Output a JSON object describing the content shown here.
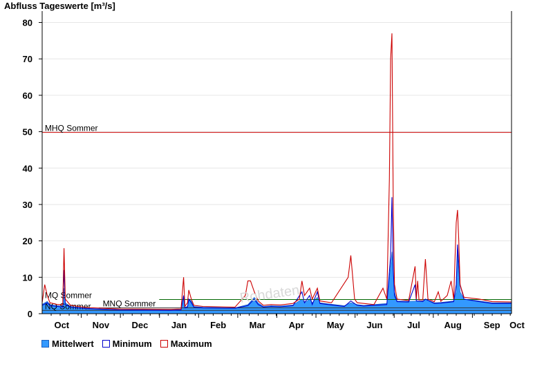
{
  "colors": {
    "mean_fill": "#3399ff",
    "minimum_line": "#0000cc",
    "maximum_line": "#cc0000",
    "mhq_line": "#cc0000",
    "mq_line": "#006600",
    "nq_line": "#333333",
    "grid": "#e6e6e6",
    "axis": "#000000"
  },
  "watermark": "Rohdaten",
  "chart_data": {
    "type": "area",
    "title": "Abfluss Tageswerte [m³/s]",
    "xlabel": "",
    "ylabel": "",
    "ylim": [
      0,
      82
    ],
    "y_ticks": [
      0,
      10,
      20,
      30,
      40,
      50,
      60,
      70,
      80
    ],
    "x_domain_days": [
      0,
      365
    ],
    "month_labels": [
      "Oct",
      "Nov",
      "Dec",
      "Jan",
      "Feb",
      "Mar",
      "Apr",
      "May",
      "Jun",
      "Jul",
      "Aug",
      "Sep",
      "Oct"
    ],
    "grid": "horizontal",
    "legend_placement": "bottom-left",
    "series": [
      {
        "name": "Mittelwert",
        "style": "area",
        "points": [
          [
            0,
            2.6
          ],
          [
            4,
            3.4
          ],
          [
            6,
            2.5
          ],
          [
            12,
            2.2
          ],
          [
            16,
            2.1
          ],
          [
            17,
            7
          ],
          [
            18,
            3
          ],
          [
            22,
            2
          ],
          [
            34,
            1.5
          ],
          [
            60,
            1.1
          ],
          [
            100,
            1.0
          ],
          [
            108,
            1.1
          ],
          [
            110,
            4.5
          ],
          [
            111,
            1.8
          ],
          [
            113,
            2
          ],
          [
            114,
            4
          ],
          [
            116,
            3.5
          ],
          [
            118,
            2.0
          ],
          [
            125,
            1.8
          ],
          [
            150,
            1.6
          ],
          [
            160,
            2.5
          ],
          [
            165,
            4.5
          ],
          [
            168,
            3
          ],
          [
            172,
            2
          ],
          [
            178,
            2.2
          ],
          [
            185,
            2.1
          ],
          [
            195,
            2.4
          ],
          [
            202,
            4
          ],
          [
            204,
            3
          ],
          [
            208,
            4
          ],
          [
            210,
            3
          ],
          [
            214,
            4.5
          ],
          [
            216,
            3
          ],
          [
            225,
            2.6
          ],
          [
            235,
            2.2
          ],
          [
            240,
            3
          ],
          [
            245,
            2.5
          ],
          [
            250,
            2.3
          ],
          [
            268,
            2.8
          ],
          [
            272,
            17
          ],
          [
            274,
            6
          ],
          [
            276,
            3.5
          ],
          [
            285,
            3.4
          ],
          [
            296,
            3.5
          ],
          [
            298,
            4
          ],
          [
            305,
            3
          ],
          [
            310,
            3.1
          ],
          [
            320,
            3.5
          ],
          [
            322,
            6
          ],
          [
            323,
            17
          ],
          [
            325,
            6
          ],
          [
            328,
            4
          ],
          [
            340,
            3.5
          ],
          [
            350,
            3
          ],
          [
            365,
            3
          ]
        ]
      },
      {
        "name": "Minimum",
        "style": "line",
        "points": [
          [
            0,
            2.3
          ],
          [
            4,
            3
          ],
          [
            6,
            2.2
          ],
          [
            12,
            2.0
          ],
          [
            16,
            1.8
          ],
          [
            17,
            12
          ],
          [
            18,
            2.5
          ],
          [
            22,
            1.8
          ],
          [
            34,
            1.4
          ],
          [
            60,
            1.0
          ],
          [
            100,
            0.9
          ],
          [
            108,
            1.0
          ],
          [
            110,
            5
          ],
          [
            111,
            1.6
          ],
          [
            113,
            1.8
          ],
          [
            114,
            4
          ],
          [
            116,
            3
          ],
          [
            118,
            1.8
          ],
          [
            125,
            1.6
          ],
          [
            150,
            1.5
          ],
          [
            160,
            2.2
          ],
          [
            165,
            4
          ],
          [
            168,
            2.5
          ],
          [
            172,
            1.8
          ],
          [
            178,
            2
          ],
          [
            185,
            1.9
          ],
          [
            195,
            2.2
          ],
          [
            202,
            6
          ],
          [
            204,
            3
          ],
          [
            208,
            5
          ],
          [
            210,
            2.5
          ],
          [
            214,
            6
          ],
          [
            216,
            2.8
          ],
          [
            225,
            2.4
          ],
          [
            235,
            2
          ],
          [
            240,
            3.5
          ],
          [
            245,
            2.3
          ],
          [
            250,
            2.1
          ],
          [
            268,
            2.5
          ],
          [
            271,
            16
          ],
          [
            272,
            32
          ],
          [
            273,
            12
          ],
          [
            274,
            5
          ],
          [
            276,
            3.3
          ],
          [
            285,
            3.2
          ],
          [
            290,
            8
          ],
          [
            291,
            3.5
          ],
          [
            296,
            3.3
          ],
          [
            298,
            4
          ],
          [
            305,
            2.8
          ],
          [
            310,
            2.9
          ],
          [
            320,
            3.3
          ],
          [
            322,
            8
          ],
          [
            323,
            19
          ],
          [
            325,
            8
          ],
          [
            328,
            4
          ],
          [
            340,
            3.3
          ],
          [
            350,
            2.8
          ],
          [
            365,
            2.8
          ]
        ]
      },
      {
        "name": "Maximum",
        "style": "line",
        "points": [
          [
            0,
            3
          ],
          [
            2,
            8
          ],
          [
            4,
            5
          ],
          [
            6,
            3
          ],
          [
            12,
            2.5
          ],
          [
            16,
            2.5
          ],
          [
            17,
            18
          ],
          [
            18,
            4
          ],
          [
            22,
            2.3
          ],
          [
            34,
            1.7
          ],
          [
            60,
            1.3
          ],
          [
            100,
            1.2
          ],
          [
            108,
            1.3
          ],
          [
            110,
            10
          ],
          [
            111,
            2
          ],
          [
            113,
            3
          ],
          [
            114,
            6.5
          ],
          [
            116,
            4
          ],
          [
            118,
            2.3
          ],
          [
            125,
            2
          ],
          [
            150,
            1.8
          ],
          [
            158,
            5
          ],
          [
            160,
            9
          ],
          [
            162,
            9
          ],
          [
            165,
            6
          ],
          [
            168,
            3.5
          ],
          [
            172,
            2.3
          ],
          [
            178,
            2.5
          ],
          [
            185,
            2.4
          ],
          [
            195,
            2.8
          ],
          [
            200,
            4
          ],
          [
            202,
            9
          ],
          [
            204,
            5
          ],
          [
            208,
            7
          ],
          [
            210,
            4
          ],
          [
            214,
            7
          ],
          [
            216,
            3.5
          ],
          [
            225,
            3
          ],
          [
            238,
            10
          ],
          [
            240,
            16
          ],
          [
            243,
            4
          ],
          [
            245,
            3
          ],
          [
            250,
            2.8
          ],
          [
            258,
            2.5
          ],
          [
            265,
            7
          ],
          [
            268,
            4
          ],
          [
            270,
            37
          ],
          [
            271,
            70
          ],
          [
            272,
            77
          ],
          [
            273,
            30
          ],
          [
            274,
            8
          ],
          [
            276,
            4
          ],
          [
            285,
            3.6
          ],
          [
            290,
            13
          ],
          [
            291,
            4
          ],
          [
            292,
            9
          ],
          [
            293,
            3.8
          ],
          [
            296,
            3.8
          ],
          [
            298,
            15
          ],
          [
            300,
            4
          ],
          [
            305,
            3.3
          ],
          [
            308,
            6
          ],
          [
            310,
            3.4
          ],
          [
            315,
            5
          ],
          [
            318,
            9
          ],
          [
            320,
            4
          ],
          [
            322,
            25
          ],
          [
            323,
            28.5
          ],
          [
            324,
            20
          ],
          [
            325,
            8
          ],
          [
            328,
            4.5
          ],
          [
            340,
            4
          ],
          [
            350,
            3.3
          ],
          [
            365,
            3.2
          ]
        ]
      }
    ],
    "reference_lines": [
      {
        "label": "MHQ Sommer",
        "value": 49.8,
        "x_start": 0,
        "x_end": 365,
        "label_x": 1,
        "color_key": "mhq_line"
      },
      {
        "label": "MQ Sommer",
        "value": 3.9,
        "x_start": 91,
        "x_end": 365,
        "label_x": 1,
        "color_key": "mq_line"
      },
      {
        "label": "MNQ Sommer",
        "value": 1.6,
        "x_start": 44,
        "x_end": 365,
        "label_x": 46,
        "color_key": "nq_line"
      },
      {
        "label": "NQ Sommer",
        "value": 0.9,
        "x_start": 0,
        "x_end": 365,
        "label_x": 1,
        "color_key": "nq_line"
      }
    ]
  }
}
